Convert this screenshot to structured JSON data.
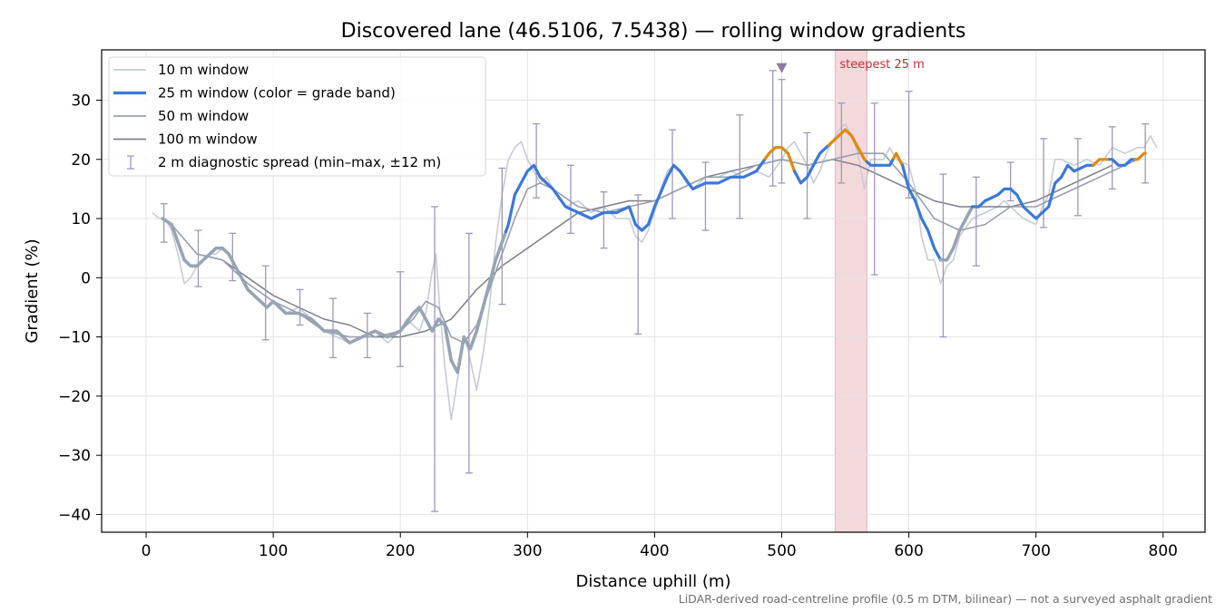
{
  "chart_data": {
    "type": "line",
    "title": "Discovered lane (46.5106, 7.5438) — rolling window gradients",
    "xlabel": "Distance uphill (m)",
    "ylabel": "Gradient (%)",
    "xlim": [
      -35,
      833
    ],
    "ylim": [
      -43,
      38.5
    ],
    "xticks": [
      0,
      100,
      200,
      300,
      400,
      500,
      600,
      700,
      800
    ],
    "yticks": [
      -40,
      -30,
      -20,
      -10,
      0,
      10,
      20,
      30
    ],
    "grid": true,
    "legend_position": "top-left",
    "footnote": "LiDAR-derived road-centreline profile (0.5 m DTM, bilinear) — not a surveyed asphalt gradient",
    "colors": {
      "w10": "#c6ccd6",
      "w25_neutral": "#97a4b3",
      "w25_moderate": "#3b78d8",
      "w25_steep": "#df8a0b",
      "w50": "#98a0af",
      "w100": "#7a7f8c",
      "errorbar": "#9f97ba",
      "highlight": "#f4d9dc",
      "highlight_edge": "#e9b5bb",
      "annotation": "#cc2a36",
      "marker": "#8b7aa3"
    },
    "legend": [
      {
        "key": "w10",
        "label": "10 m window"
      },
      {
        "key": "w25",
        "label": "25 m window (color = grade band)"
      },
      {
        "key": "w50",
        "label": "50 m window"
      },
      {
        "key": "w100",
        "label": "100 m window"
      },
      {
        "key": "spread",
        "label": "2 m diagnostic spread (min–max, ±12 m)"
      }
    ],
    "steepest_window": {
      "label": "steepest 25 m",
      "x_start": 542,
      "x_end": 567
    },
    "peak_marker": {
      "x": 500,
      "y": 35.5
    },
    "series": [
      {
        "name": "10 m window",
        "x": [
          5,
          10,
          15,
          20,
          25,
          30,
          35,
          40,
          45,
          50,
          55,
          60,
          65,
          70,
          75,
          80,
          85,
          90,
          95,
          100,
          110,
          120,
          130,
          140,
          150,
          160,
          170,
          180,
          190,
          200,
          205,
          210,
          215,
          220,
          225,
          228,
          231,
          235,
          240,
          245,
          250,
          253,
          256,
          260,
          265,
          270,
          275,
          280,
          285,
          290,
          295,
          300,
          305,
          310,
          315,
          320,
          330,
          340,
          350,
          360,
          370,
          380,
          385,
          390,
          395,
          400,
          405,
          410,
          415,
          420,
          425,
          430,
          440,
          450,
          460,
          470,
          480,
          490,
          500,
          505,
          510,
          515,
          520,
          525,
          530,
          535,
          540,
          545,
          550,
          555,
          560,
          565,
          570,
          580,
          585,
          590,
          600,
          605,
          610,
          615,
          620,
          625,
          630,
          635,
          640,
          650,
          660,
          670,
          675,
          680,
          690,
          700,
          705,
          710,
          715,
          720,
          730,
          740,
          750,
          760,
          770,
          780,
          785,
          790,
          795
        ],
        "values": [
          11,
          10,
          10,
          8,
          4,
          -1,
          0,
          2,
          3,
          4,
          4,
          5,
          4,
          2,
          0,
          -2,
          -3,
          -4,
          -5,
          -4,
          -6,
          -5,
          -7,
          -9,
          -10,
          -11,
          -10,
          -9,
          -11,
          -9,
          -7,
          -8,
          -9,
          -6,
          1,
          4,
          -5,
          -15,
          -24,
          -17,
          -10,
          -12,
          -15,
          -19,
          -13,
          -5,
          6,
          14,
          20,
          22,
          23,
          20,
          18,
          16,
          17,
          15,
          12,
          13,
          11,
          12,
          10,
          10,
          7,
          6,
          8,
          11,
          15,
          18,
          19,
          18,
          16,
          15,
          17,
          17,
          18,
          17,
          18,
          17,
          20,
          22,
          23,
          21,
          19,
          16,
          18,
          21,
          23,
          25,
          26,
          24,
          21,
          15,
          20,
          20,
          22,
          20,
          19,
          15,
          7,
          3,
          3,
          -1,
          2,
          3,
          7,
          10,
          11,
          12,
          13,
          12,
          10,
          9,
          12,
          14,
          20,
          20,
          19,
          20,
          19,
          22,
          21,
          22,
          22,
          24,
          22
        ]
      },
      {
        "name": "25 m window",
        "x": [
          13,
          20,
          25,
          30,
          35,
          40,
          45,
          50,
          55,
          60,
          65,
          70,
          75,
          80,
          85,
          90,
          95,
          100,
          110,
          120,
          130,
          140,
          150,
          160,
          170,
          180,
          190,
          200,
          210,
          215,
          220,
          225,
          230,
          235,
          240,
          245,
          250,
          255,
          260,
          265,
          270,
          275,
          280,
          285,
          290,
          295,
          300,
          305,
          310,
          315,
          320,
          330,
          340,
          350,
          360,
          370,
          380,
          385,
          390,
          395,
          400,
          410,
          415,
          420,
          430,
          440,
          450,
          460,
          470,
          480,
          490,
          495,
          500,
          505,
          510,
          515,
          520,
          525,
          530,
          535,
          540,
          545,
          550,
          555,
          560,
          565,
          570,
          575,
          580,
          585,
          590,
          595,
          600,
          605,
          610,
          615,
          620,
          625,
          630,
          635,
          640,
          645,
          650,
          655,
          660,
          670,
          675,
          680,
          685,
          690,
          700,
          705,
          710,
          715,
          720,
          725,
          730,
          740,
          745,
          750,
          755,
          760,
          765,
          770,
          775,
          780,
          785
        ],
        "values": [
          10,
          9,
          6,
          3,
          2,
          2,
          3,
          4,
          5,
          5,
          4,
          2,
          0,
          -2,
          -3,
          -4,
          -5,
          -4,
          -6,
          -6,
          -7,
          -9,
          -9,
          -11,
          -10,
          -9,
          -10,
          -9,
          -6,
          -5,
          -7,
          -9,
          -7,
          -8,
          -14,
          -16,
          -10,
          -12,
          -9,
          -5,
          -1,
          3,
          6,
          9,
          14,
          16,
          18,
          19,
          17,
          16,
          15,
          12,
          11,
          10,
          11,
          11,
          12,
          9,
          8,
          9,
          12,
          17,
          19,
          18,
          15,
          16,
          16,
          17,
          17,
          18,
          21,
          22,
          22,
          21,
          18,
          16,
          17,
          19,
          21,
          22,
          23,
          24,
          25,
          24,
          22,
          20,
          19,
          19,
          19,
          19,
          21,
          19,
          15,
          13,
          10,
          8,
          5,
          3,
          3,
          5,
          8,
          10,
          12,
          12,
          13,
          14,
          15,
          15,
          14,
          12,
          10,
          11,
          12,
          16,
          17,
          19,
          18,
          19,
          19,
          20,
          20,
          20,
          19,
          19,
          20,
          20,
          21
        ]
      },
      {
        "name": "50 m window",
        "x": [
          20,
          40,
          60,
          80,
          100,
          120,
          140,
          160,
          180,
          200,
          210,
          220,
          230,
          240,
          250,
          260,
          270,
          280,
          290,
          300,
          310,
          320,
          340,
          360,
          380,
          400,
          420,
          440,
          460,
          480,
          500,
          520,
          540,
          560,
          580,
          600,
          620,
          640,
          660,
          680,
          700,
          720,
          740,
          760,
          780
        ],
        "values": [
          9,
          4,
          3,
          -1,
          -4,
          -6,
          -9,
          -10,
          -10,
          -9,
          -7,
          -4,
          -5,
          -10,
          -11,
          -8,
          -2,
          4,
          10,
          15,
          16,
          15,
          12,
          11,
          12,
          13,
          15,
          17,
          17,
          19,
          20,
          19,
          20,
          21,
          21,
          16,
          10,
          8,
          9,
          12,
          12,
          14,
          16,
          18,
          20
        ]
      },
      {
        "name": "100 m window",
        "x": [
          40,
          60,
          80,
          100,
          120,
          140,
          160,
          180,
          200,
          220,
          240,
          260,
          280,
          300,
          320,
          340,
          360,
          380,
          400,
          420,
          440,
          460,
          480,
          500,
          520,
          540,
          560,
          580,
          600,
          620,
          640,
          660,
          680,
          700,
          720,
          740,
          760
        ],
        "values": [
          4,
          3,
          0,
          -3,
          -5,
          -7,
          -8,
          -10,
          -10,
          -9,
          -7,
          -2,
          2,
          5,
          8,
          11,
          12,
          13,
          13,
          15,
          17,
          18,
          19,
          20,
          19,
          20,
          19,
          17,
          15,
          13,
          12,
          12,
          12,
          13,
          15,
          17,
          19
        ]
      }
    ],
    "grade_band_25m": [
      {
        "band": "neutral",
        "x_from": 13,
        "x_to": 283
      },
      {
        "band": "moderate",
        "x_from": 283,
        "x_to": 487
      },
      {
        "band": "steep",
        "x_from": 487,
        "x_to": 510
      },
      {
        "band": "moderate",
        "x_from": 510,
        "x_to": 537
      },
      {
        "band": "steep",
        "x_from": 537,
        "x_to": 567
      },
      {
        "band": "moderate",
        "x_from": 567,
        "x_to": 588
      },
      {
        "band": "steep",
        "x_from": 588,
        "x_to": 595
      },
      {
        "band": "moderate",
        "x_from": 595,
        "x_to": 625
      },
      {
        "band": "neutral",
        "x_from": 625,
        "x_to": 650
      },
      {
        "band": "moderate",
        "x_from": 650,
        "x_to": 745
      },
      {
        "band": "steep",
        "x_from": 745,
        "x_to": 758
      },
      {
        "band": "moderate",
        "x_from": 758,
        "x_to": 778
      },
      {
        "band": "steep",
        "x_from": 778,
        "x_to": 786
      }
    ],
    "error_bars": [
      {
        "x": 14,
        "lo": 6,
        "hi": 12.5
      },
      {
        "x": 41,
        "lo": -1.5,
        "hi": 8
      },
      {
        "x": 68,
        "lo": -0.5,
        "hi": 7.5
      },
      {
        "x": 94,
        "lo": -10.5,
        "hi": 2
      },
      {
        "x": 121,
        "lo": -8,
        "hi": -2
      },
      {
        "x": 147,
        "lo": -13.5,
        "hi": -3.5
      },
      {
        "x": 174,
        "lo": -13.5,
        "hi": -6
      },
      {
        "x": 200,
        "lo": -15,
        "hi": 1
      },
      {
        "x": 227,
        "lo": -39.5,
        "hi": 12
      },
      {
        "x": 254,
        "lo": -33,
        "hi": 7.5
      },
      {
        "x": 280,
        "lo": -4.5,
        "hi": 18.5
      },
      {
        "x": 307,
        "lo": 13.5,
        "hi": 26
      },
      {
        "x": 334,
        "lo": 7.5,
        "hi": 19
      },
      {
        "x": 360,
        "lo": 5,
        "hi": 14.5
      },
      {
        "x": 387,
        "lo": -9.5,
        "hi": 14
      },
      {
        "x": 414,
        "lo": 10,
        "hi": 25
      },
      {
        "x": 440,
        "lo": 8,
        "hi": 19.5
      },
      {
        "x": 467,
        "lo": 10,
        "hi": 27.5
      },
      {
        "x": 493,
        "lo": 15.5,
        "hi": 35
      },
      {
        "x": 500,
        "lo": 16,
        "hi": 33.5
      },
      {
        "x": 520,
        "lo": 10,
        "hi": 24.5
      },
      {
        "x": 547,
        "lo": 16,
        "hi": 29.5
      },
      {
        "x": 573,
        "lo": 0.5,
        "hi": 29.5
      },
      {
        "x": 600,
        "lo": 13.5,
        "hi": 31.5
      },
      {
        "x": 627,
        "lo": -10,
        "hi": 17.5
      },
      {
        "x": 653,
        "lo": 2,
        "hi": 17
      },
      {
        "x": 680,
        "lo": 13,
        "hi": 19.5
      },
      {
        "x": 706,
        "lo": 8.5,
        "hi": 23.5
      },
      {
        "x": 733,
        "lo": 10.5,
        "hi": 23.5
      },
      {
        "x": 760,
        "lo": 15,
        "hi": 25.5
      },
      {
        "x": 786,
        "lo": 16,
        "hi": 26
      }
    ]
  }
}
